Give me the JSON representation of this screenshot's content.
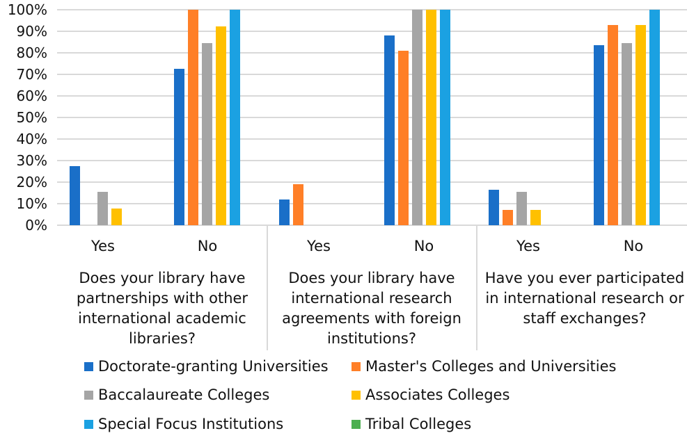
{
  "chart_data": {
    "type": "bar",
    "title": "",
    "xlabel": "",
    "ylabel": "",
    "ylim": [
      0,
      100
    ],
    "y_ticks": [
      "0%",
      "10%",
      "20%",
      "30%",
      "40%",
      "50%",
      "60%",
      "70%",
      "80%",
      "90%",
      "100%"
    ],
    "grid": true,
    "legend_position": "bottom",
    "question_groups": [
      "Does your library have\npartnerships with other\ninternational academic\nlibraries?",
      "Does your library have\ninternational research\nagreements with foreign\ninstitutions?",
      "Have you ever participated\nin international research or\nstaff exchanges?"
    ],
    "answer_labels": [
      "Yes",
      "No"
    ],
    "categories": [
      "Q1 Yes",
      "Q1 No",
      "Q2 Yes",
      "Q2 No",
      "Q3 Yes",
      "Q3 No"
    ],
    "series": [
      {
        "name": "Doctorate-granting Universities",
        "color": "#1a6fc8",
        "values": [
          27.3,
          72.7,
          11.8,
          88.2,
          16.5,
          83.5
        ]
      },
      {
        "name": "Master's Colleges and Universities",
        "color": "#ff7f27",
        "values": [
          0,
          100,
          19.0,
          81.0,
          7.2,
          92.8
        ]
      },
      {
        "name": "Baccalaureate Colleges",
        "color": "#a5a5a5",
        "values": [
          15.4,
          84.6,
          0,
          100,
          15.4,
          84.6
        ]
      },
      {
        "name": "Associates Colleges",
        "color": "#ffc000",
        "values": [
          7.7,
          92.3,
          0,
          100,
          7.1,
          92.9
        ]
      },
      {
        "name": "Special Focus Institutions",
        "color": "#1ba1e2",
        "values": [
          0,
          100,
          0,
          100,
          0,
          100
        ]
      },
      {
        "name": "Tribal Colleges",
        "color": "#4caf50",
        "values": [
          0,
          0,
          0,
          0,
          0,
          0
        ]
      }
    ]
  }
}
